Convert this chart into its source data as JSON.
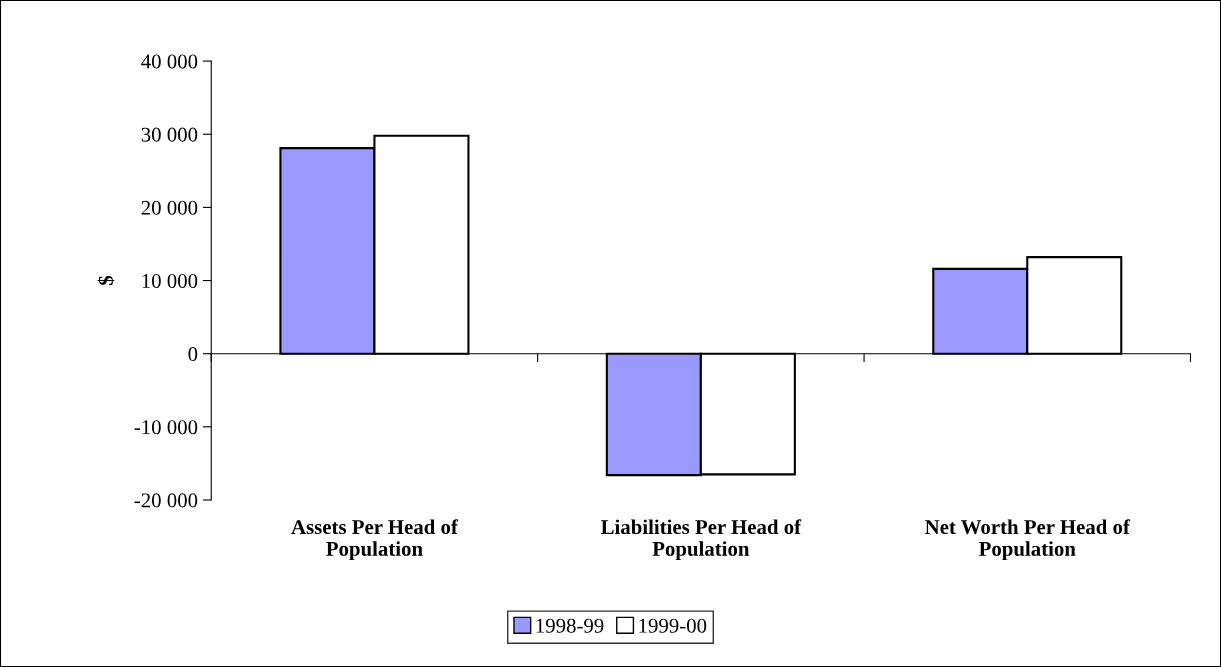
{
  "chart_data": {
    "type": "bar",
    "ylabel": "$",
    "categories": [
      "Assets Per Head of Population",
      "Liabilities Per Head of Population",
      "Net Worth Per Head of Population"
    ],
    "series": [
      {
        "name": "1998-99",
        "color": "#9999ff",
        "values": [
          28100,
          -16600,
          11600
        ]
      },
      {
        "name": "1999-00",
        "color": "#ffffff",
        "values": [
          29800,
          -16500,
          13200
        ]
      }
    ],
    "ylim": [
      -20000,
      40000
    ],
    "yticks": [
      {
        "value": -20000,
        "label": "-20 000"
      },
      {
        "value": -10000,
        "label": "-10 000"
      },
      0,
      {
        "value": 10000,
        "label": "10 000"
      },
      {
        "value": 20000,
        "label": "20 000"
      },
      {
        "value": 30000,
        "label": "30 000"
      },
      {
        "value": 40000,
        "label": "40 000"
      }
    ],
    "legend": "bottom"
  }
}
